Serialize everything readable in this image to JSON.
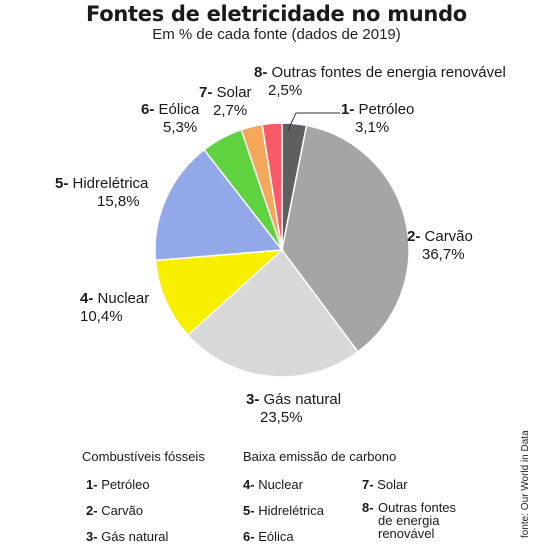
{
  "header": {
    "title": "Fontes de eletricidade no mundo",
    "subtitle": "Em % de cada fonte (dados de 2019)"
  },
  "chart_data": {
    "type": "pie",
    "title": "Fontes de eletricidade no mundo",
    "subtitle": "Em % de cada fonte (dados de 2019)",
    "unit": "%",
    "slices": [
      {
        "num": "1",
        "name": "Petróleo",
        "value": 3.1,
        "label": "3,1%",
        "color": "#5f5f61"
      },
      {
        "num": "2",
        "name": "Carvão",
        "value": 36.7,
        "label": "36,7%",
        "color": "#a5a5a7"
      },
      {
        "num": "3",
        "name": "Gás natural",
        "value": 23.5,
        "label": "23,5%",
        "color": "#d8d8d8"
      },
      {
        "num": "4",
        "name": "Nuclear",
        "value": 10.4,
        "label": "10,4%",
        "color": "#f7ee00"
      },
      {
        "num": "5",
        "name": "Hidrelétrica",
        "value": 15.8,
        "label": "15,8%",
        "color": "#93a8e8"
      },
      {
        "num": "6",
        "name": "Eólica",
        "value": 5.3,
        "label": "5,3%",
        "color": "#5ed33f"
      },
      {
        "num": "7",
        "name": "Solar",
        "value": 2.7,
        "label": "2,7%",
        "color": "#f6a85a"
      },
      {
        "num": "8",
        "name": "Outras fontes de energia renovável",
        "value": 2.5,
        "label": "2,5%",
        "color": "#f95a68"
      }
    ]
  },
  "legend": {
    "group_fossil": "Combustíveis fósseis",
    "group_low_carbon": "Baixa emissão de carbono",
    "items": [
      {
        "num": "1-",
        "text": "Petróleo"
      },
      {
        "num": "2-",
        "text": "Carvão"
      },
      {
        "num": "3-",
        "text": "Gás natural"
      },
      {
        "num": "4-",
        "text": "Nuclear"
      },
      {
        "num": "5-",
        "text": "Hidrelétrica"
      },
      {
        "num": "6-",
        "text": "Eólica"
      },
      {
        "num": "7-",
        "text": "Solar"
      },
      {
        "num": "8-",
        "text": "Outras fontes de energia renovável"
      }
    ]
  },
  "source": "fonte: Our World in Data"
}
